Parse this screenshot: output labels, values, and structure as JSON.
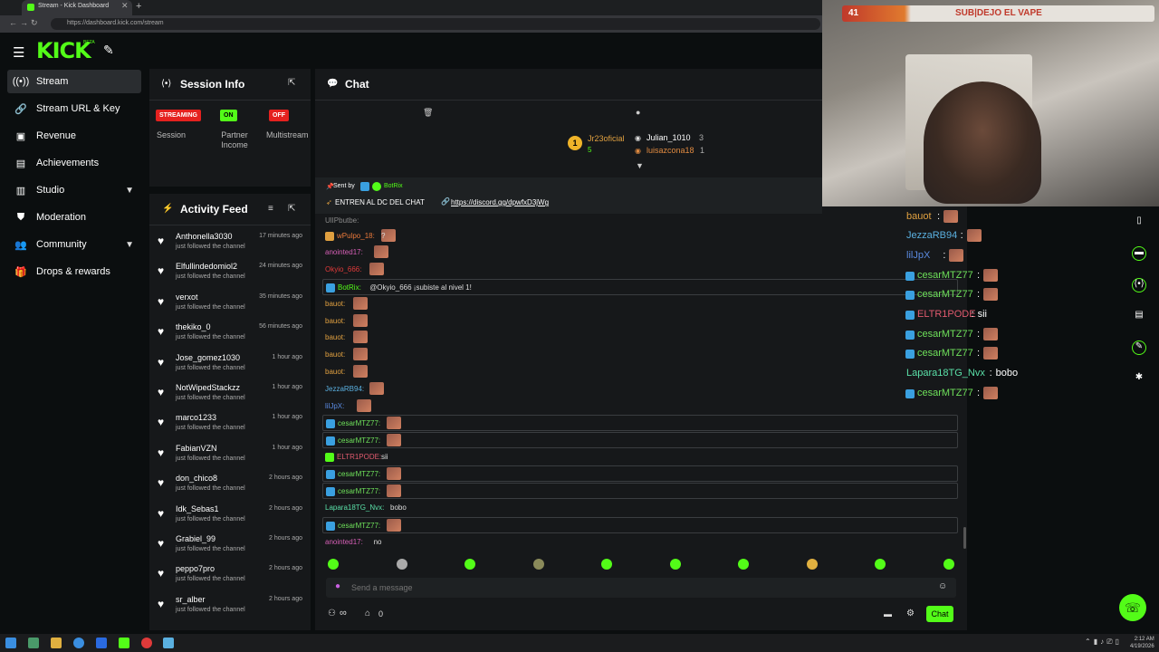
{
  "browser": {
    "tab_title": "Stream - Kick Dashboard",
    "url": "https://dashboard.kick.com/stream"
  },
  "header": {
    "logo": "KICK",
    "logo_sup": "BETA"
  },
  "sidebar": {
    "items": [
      {
        "label": "Stream",
        "icon": "radio-icon"
      },
      {
        "label": "Stream URL & Key",
        "icon": "link-icon"
      },
      {
        "label": "Revenue",
        "icon": "dollar-icon"
      },
      {
        "label": "Achievements",
        "icon": "trophy-icon"
      },
      {
        "label": "Studio",
        "icon": "camera-icon"
      },
      {
        "label": "Moderation",
        "icon": "shield-icon"
      },
      {
        "label": "Community",
        "icon": "users-icon"
      },
      {
        "label": "Drops & rewards",
        "icon": "gift-icon"
      }
    ]
  },
  "session": {
    "title": "Session Info",
    "badges": [
      {
        "badge": "STREAMING",
        "label": "Session"
      },
      {
        "badge": "ON",
        "label": "Partner Income"
      },
      {
        "badge": "OFF",
        "label": "Multistream"
      }
    ]
  },
  "activity": {
    "title": "Activity Feed",
    "items": [
      {
        "user": "Anthonella3030",
        "time": "17 minutes ago",
        "text": "just followed the channel"
      },
      {
        "user": "Elfullindedomiol2",
        "time": "24 minutes ago",
        "text": "just followed the channel"
      },
      {
        "user": "verxot",
        "time": "35 minutes ago",
        "text": "just followed the channel"
      },
      {
        "user": "thekiko_0",
        "time": "56 minutes ago",
        "text": "just followed the channel"
      },
      {
        "user": "Jose_gomez1030",
        "time": "1 hour ago",
        "text": "just followed the channel"
      },
      {
        "user": "NotWipedStackzz",
        "time": "1 hour ago",
        "text": "just followed the channel"
      },
      {
        "user": "marco1233",
        "time": "1 hour ago",
        "text": "just followed the channel"
      },
      {
        "user": "FabianVZN",
        "time": "1 hour ago",
        "text": "just followed the channel"
      },
      {
        "user": "don_chico8",
        "time": "2 hours ago",
        "text": "just followed the channel"
      },
      {
        "user": "Idk_Sebas1",
        "time": "2 hours ago",
        "text": "just followed the channel"
      },
      {
        "user": "Grabiel_99",
        "time": "2 hours ago",
        "text": "just followed the channel"
      },
      {
        "user": "peppo7pro",
        "time": "2 hours ago",
        "text": "just followed the channel"
      },
      {
        "user": "sr_alber",
        "time": "2 hours ago",
        "text": "just followed the channel"
      }
    ]
  },
  "chat": {
    "title": "Chat",
    "leaderboard": {
      "rank": "1",
      "first": "Jr23oficial",
      "first_count": "5",
      "second": "Julian_1010",
      "second_count": "3",
      "third": "luisazcona18",
      "third_count": "1"
    },
    "pinned": {
      "sent_by_label": "Sent by",
      "sender": "BotRix",
      "text": "ENTREN AL DC DEL CHAT",
      "link": "https://discord.gg/dpwfxD3jWg"
    },
    "messages": [
      {
        "user": "wPulpo_18:",
        "text": "?",
        "color": "#e8783a"
      },
      {
        "user": "anointed17:",
        "text": "",
        "color": "#d65fb6"
      },
      {
        "user": "Okyio_666:",
        "text": "",
        "color": "#e03a3a"
      },
      {
        "user": "BotRix:",
        "text": "@Okyio_666 ¡subiste al nivel 1!",
        "color": "#53fc18"
      },
      {
        "user": "bauot:",
        "text": "",
        "color": "#e0a040"
      },
      {
        "user": "bauot:",
        "text": "",
        "color": "#e0a040"
      },
      {
        "user": "bauot:",
        "text": "",
        "color": "#e0a040"
      },
      {
        "user": "bauot:",
        "text": "",
        "color": "#e0a040"
      },
      {
        "user": "bauot:",
        "text": "",
        "color": "#e0a040"
      },
      {
        "user": "JezzaRB94:",
        "text": "",
        "color": "#5ab0e0"
      },
      {
        "user": "lilJpX:",
        "text": "",
        "color": "#5a8ae0"
      },
      {
        "user": "cesarMTZ77:",
        "text": "",
        "color": "#6ee05a"
      },
      {
        "user": "cesarMTZ77:",
        "text": "",
        "color": "#6ee05a"
      },
      {
        "user": "ELTR1PODE:",
        "text": "sii",
        "color": "#e05a6e"
      },
      {
        "user": "cesarMTZ77:",
        "text": "",
        "color": "#6ee05a"
      },
      {
        "user": "cesarMTZ77:",
        "text": "",
        "color": "#6ee05a"
      },
      {
        "user": "Lapara18TG_Nvx:",
        "text": "bobo",
        "color": "#5ae0a8"
      },
      {
        "user": "cesarMTZ77:",
        "text": "",
        "color": "#6ee05a"
      },
      {
        "user": "anointed17:",
        "text": "no",
        "color": "#d65fb6"
      }
    ],
    "input_placeholder": "Send a message",
    "infinity": "∞",
    "points": "0",
    "send_label": "Chat"
  },
  "overlay": {
    "level": "41",
    "goal_text": "SUB|DEJO EL VAPE",
    "lines": [
      {
        "user": "bauot",
        "text": "",
        "color": "#e0a040"
      },
      {
        "user": "JezzaRB94",
        "text": "",
        "color": "#5ab0e0"
      },
      {
        "user": "lilJpX",
        "text": "",
        "color": "#5a8ae0"
      },
      {
        "user": "cesarMTZ77",
        "text": "",
        "color": "#6ee05a"
      },
      {
        "user": "cesarMTZ77",
        "text": "",
        "color": "#6ee05a"
      },
      {
        "user": "ELTR1PODE",
        "text": "sii",
        "color": "#e05a6e"
      },
      {
        "user": "cesarMTZ77",
        "text": "",
        "color": "#6ee05a"
      },
      {
        "user": "cesarMTZ77",
        "text": "",
        "color": "#6ee05a"
      },
      {
        "user": "Lapara18TG_Nvx",
        "text": "bobo",
        "color": "#5ae0a8"
      },
      {
        "user": "cesarMTZ77",
        "text": "",
        "color": "#6ee05a"
      }
    ]
  },
  "taskbar": {
    "time": "2:12 AM",
    "date": "4/19/2026"
  },
  "colors": {
    "accent": "#53fc18",
    "streaming": "#e5211f",
    "panel": "#16181a"
  }
}
